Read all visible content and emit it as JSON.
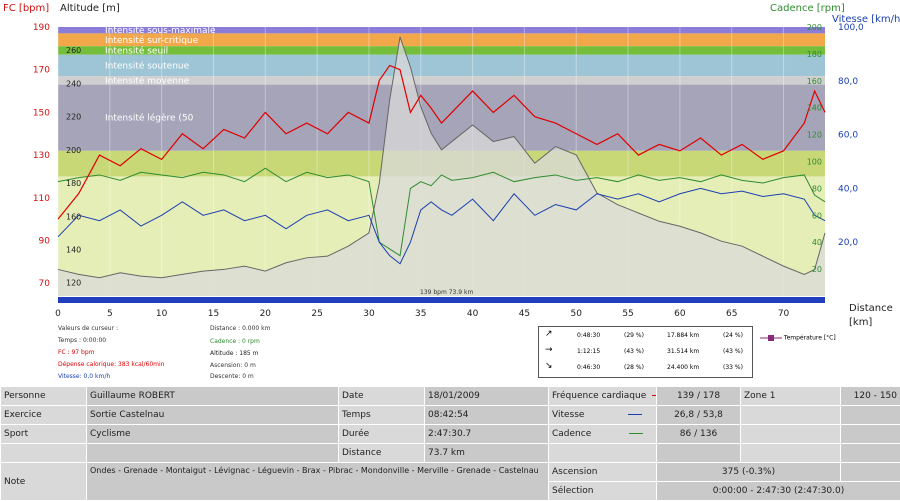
{
  "axes": {
    "left_title": "FC [bpm]",
    "alt_title": "Altitude  [m]",
    "cad_title": "Cadence [rpm]",
    "speed_title": "Vitesse [km/h]",
    "dist_title": "Distance",
    "dist_unit": "[km]",
    "fc_ticks": [
      "190",
      "170",
      "150",
      "130",
      "110",
      "90",
      "70"
    ],
    "alt_ticks": [
      "260",
      "240",
      "220",
      "200",
      "180",
      "160",
      "140",
      "120"
    ],
    "cad_ticks": [
      "200",
      "180",
      "160",
      "140",
      "120",
      "100",
      "80",
      "60",
      "40",
      "20"
    ],
    "speed_ticks": [
      "100,0",
      "80,0",
      "60,0",
      "40,0",
      "20,0"
    ],
    "dist_ticks": [
      "0",
      "5",
      "10",
      "15",
      "20",
      "25",
      "30",
      "35",
      "40",
      "45",
      "50",
      "55",
      "60",
      "65",
      "70"
    ]
  },
  "zones": [
    {
      "label": "Intensité sous-maximale",
      "from": 190,
      "to": 187,
      "color": "#8a7cd8"
    },
    {
      "label": "Intensité sur-critique",
      "from": 187,
      "to": 181,
      "color": "#f2a84a"
    },
    {
      "label": "Intensité seuil",
      "from": 181,
      "to": 177,
      "color": "#74be3c"
    },
    {
      "label": "Intensité soutenue",
      "from": 177,
      "to": 167,
      "color": "#9ec5d6"
    },
    {
      "label": "Intensité moyenne",
      "from": 167,
      "to": 163,
      "color": "#cfcfcf"
    },
    {
      "label": "Intensité légère (50",
      "from": 163,
      "to": 132,
      "color": "#a6a4b8"
    },
    {
      "label": "",
      "from": 132,
      "to": 120,
      "color": "#c8d877"
    },
    {
      "label": "",
      "from": 120,
      "to": 64,
      "color": "#e6eeb8"
    }
  ],
  "chart_data": {
    "type": "line",
    "x_label": "Distance",
    "x_unit": "[km]",
    "xlim": [
      0,
      74
    ],
    "fc_lim": [
      64,
      190
    ],
    "alt_lim": [
      112,
      274
    ],
    "cad_lim": [
      0,
      200
    ],
    "speed_lim": [
      0,
      100
    ],
    "x": [
      0,
      2,
      4,
      6,
      8,
      10,
      12,
      14,
      16,
      18,
      20,
      22,
      24,
      26,
      28,
      30,
      31,
      32,
      33,
      34,
      35,
      36,
      37,
      38,
      40,
      42,
      44,
      46,
      48,
      50,
      52,
      54,
      56,
      58,
      60,
      62,
      64,
      66,
      68,
      70,
      72,
      73,
      74
    ],
    "series": [
      {
        "name": "FC",
        "unit": "bpm",
        "color": "#e00000",
        "values": [
          100,
          112,
          130,
          125,
          133,
          128,
          140,
          133,
          142,
          138,
          150,
          140,
          145,
          140,
          150,
          145,
          165,
          172,
          170,
          150,
          158,
          152,
          145,
          150,
          160,
          150,
          158,
          148,
          145,
          140,
          135,
          140,
          130,
          135,
          132,
          138,
          130,
          135,
          128,
          132,
          145,
          160,
          150
        ]
      },
      {
        "name": "Altitude",
        "unit": "m",
        "color": "#666666",
        "values": [
          128,
          125,
          123,
          126,
          124,
          123,
          125,
          127,
          128,
          130,
          127,
          132,
          135,
          136,
          142,
          150,
          180,
          230,
          268,
          250,
          226,
          210,
          200,
          205,
          215,
          205,
          208,
          192,
          202,
          197,
          174,
          167,
          162,
          157,
          154,
          150,
          145,
          142,
          136,
          130,
          125,
          128,
          150
        ]
      },
      {
        "name": "Cadence",
        "unit": "rpm",
        "color": "#2e8b2e",
        "values": [
          85,
          88,
          90,
          86,
          92,
          90,
          88,
          92,
          90,
          85,
          95,
          85,
          92,
          88,
          90,
          85,
          40,
          35,
          30,
          80,
          85,
          82,
          90,
          86,
          88,
          92,
          85,
          88,
          90,
          86,
          88,
          85,
          90,
          86,
          88,
          85,
          90,
          86,
          84,
          88,
          90,
          75,
          70
        ]
      },
      {
        "name": "Vitesse",
        "unit": "km/h",
        "color": "#1a3fb0",
        "values": [
          22,
          30,
          28,
          32,
          26,
          30,
          35,
          30,
          32,
          28,
          30,
          25,
          30,
          32,
          28,
          30,
          20,
          15,
          12,
          20,
          32,
          35,
          32,
          30,
          36,
          28,
          38,
          30,
          34,
          32,
          38,
          36,
          38,
          35,
          38,
          40,
          38,
          39,
          37,
          38,
          36,
          30,
          28
        ]
      }
    ],
    "annotation": "139 bpm 73.9 km"
  },
  "cursor": {
    "title": "Valeurs de curseur :",
    "temps": "Temps : 0:00:00",
    "fc": "FC : 97 bpm",
    "depense": "Dépense calorique: 383 kcal/60min",
    "vitesse": "Vitesse: 0,0 km/h",
    "distance": "Distance : 0.000 km",
    "cadence": "Cadence : 0 rpm",
    "altitude": "Altitude : 185 m",
    "ascension": "Ascension: 0 m",
    "descente": "Descente: 0 m"
  },
  "stats": [
    {
      "arrow": "↗",
      "time": "0:48:30",
      "pct": "(29 %)",
      "dist": "17.884 km",
      "dpct": "(24 %)"
    },
    {
      "arrow": "→",
      "time": "1:12:15",
      "pct": "(43 %)",
      "dist": "31.514 km",
      "dpct": "(43 %)"
    },
    {
      "arrow": "↘",
      "time": "0:46:30",
      "pct": "(28 %)",
      "dist": "24.400 km",
      "dpct": "(33 %)"
    }
  ],
  "legend_temp": "Température [°C]",
  "summary": {
    "personne_k": "Personne",
    "personne_v": "Guillaume ROBERT",
    "date_k": "Date",
    "date_v": "18/01/2009",
    "fc_k": "Fréquence cardiaque",
    "fc_v": "139 / 178",
    "zone_k": "Zone 1",
    "zone_v": "120 - 150",
    "exercice_k": "Exercice",
    "exercice_v": "Sortie Castelnau",
    "temps_k": "Temps",
    "temps_v": "08:42:54",
    "vitesse_k": "Vitesse",
    "vitesse_v": "26,8 / 53,8",
    "sport_k": "Sport",
    "sport_v": "Cyclisme",
    "duree_k": "Durée",
    "duree_v": "2:47:30.7",
    "cadence_k": "Cadence",
    "cadence_v": "86 / 136",
    "distance_k": "Distance",
    "distance_v": "73.7 km",
    "note_k": "Note",
    "note_v": "Ondes - Grenade - Montaigut - Lévignac - Léguevin - Brax - Pibrac - Mondonville - Merville - Grenade - Castelnau",
    "ascension_k": "Ascension",
    "ascension_v": "375 (-0.3%)",
    "selection_k": "Sélection",
    "selection_v": "0:00:00 - 2:47:30 (2:47:30.0)"
  }
}
